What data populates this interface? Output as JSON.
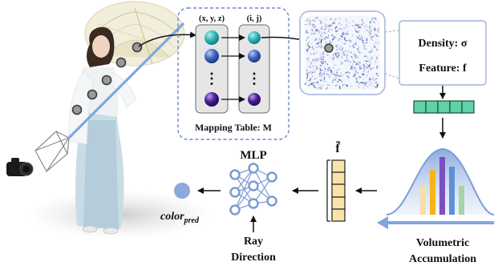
{
  "mapping_table": {
    "col_xyz_label": "(x, y, z)",
    "col_ij_label": "(i, j)",
    "caption": "Mapping Table: M",
    "dots": "⋮"
  },
  "outputs": {
    "density_label": "Density: σ",
    "feature_label": "Feature: f"
  },
  "mlp": {
    "label": "MLP",
    "ray_line1": "Ray",
    "ray_line2": "Direction"
  },
  "feature_vector_label": "f̃",
  "accumulation": {
    "line1": "Volumetric",
    "line2": "Accumulation"
  },
  "color_pred": {
    "base": "color",
    "sub": "pred"
  },
  "icons": [
    "camera-icon",
    "umbrella-icon",
    "person-illustration",
    "neural-network-icon",
    "gaussian-curve-icon"
  ],
  "colors": {
    "ray": "#7fa7df",
    "dashed_box": "#6b86c8",
    "feature_cell": "#5fd3a8",
    "tilde_cell": "#fae3a8",
    "mlp_node": "#7d9bd1",
    "pred_dot": "#8ea8dc",
    "teal_sphere": "#2fb7b6",
    "blue_sphere": "#3e64c0",
    "purple_sphere": "#4b1d97"
  }
}
